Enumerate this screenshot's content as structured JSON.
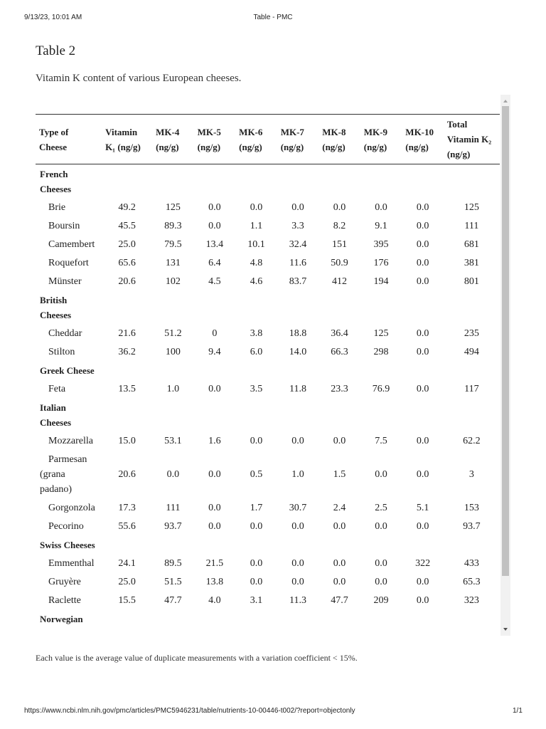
{
  "browser_header": {
    "datetime": "9/13/23, 10:01 AM",
    "page_title": "Table - PMC"
  },
  "title": "Table 2",
  "caption": "Vitamin K content of various European cheeses.",
  "table": {
    "headers": [
      "Type of Cheese",
      "Vitamin K₁ (ng/g)",
      "MK-4 (ng/g)",
      "MK-5 (ng/g)",
      "MK-6 (ng/g)",
      "MK-7 (ng/g)",
      "MK-8 (ng/g)",
      "MK-9 (ng/g)",
      "MK-10 (ng/g)",
      "Total Vitamin K₂ (ng/g)"
    ],
    "rows": [
      {
        "group": "French Cheeses"
      },
      {
        "cells": [
          "Brie",
          "49.2",
          "125",
          "0.0",
          "0.0",
          "0.0",
          "0.0",
          "0.0",
          "0.0",
          "125"
        ]
      },
      {
        "cells": [
          "Boursin",
          "45.5",
          "89.3",
          "0.0",
          "1.1",
          "3.3",
          "8.2",
          "9.1",
          "0.0",
          "111"
        ]
      },
      {
        "cells": [
          "Camembert",
          "25.0",
          "79.5",
          "13.4",
          "10.1",
          "32.4",
          "151",
          "395",
          "0.0",
          "681"
        ]
      },
      {
        "cells": [
          "Roquefort",
          "65.6",
          "131",
          "6.4",
          "4.8",
          "11.6",
          "50.9",
          "176",
          "0.0",
          "381"
        ]
      },
      {
        "cells": [
          "Münster",
          "20.6",
          "102",
          "4.5",
          "4.6",
          "83.7",
          "412",
          "194",
          "0.0",
          "801"
        ]
      },
      {
        "group": "British Cheeses"
      },
      {
        "cells": [
          "Cheddar",
          "21.6",
          "51.2",
          "0",
          "3.8",
          "18.8",
          "36.4",
          "125",
          "0.0",
          "235"
        ]
      },
      {
        "cells": [
          "Stilton",
          "36.2",
          "100",
          "9.4",
          "6.0",
          "14.0",
          "66.3",
          "298",
          "0.0",
          "494"
        ]
      },
      {
        "group": "Greek Cheese"
      },
      {
        "cells": [
          "Feta",
          "13.5",
          "1.0",
          "0.0",
          "3.5",
          "11.8",
          "23.3",
          "76.9",
          "0.0",
          "117"
        ]
      },
      {
        "group": "Italian Cheeses"
      },
      {
        "cells": [
          "Mozzarella",
          "15.0",
          "53.1",
          "1.6",
          "0.0",
          "0.0",
          "0.0",
          "7.5",
          "0.0",
          "62.2"
        ]
      },
      {
        "cells": [
          "Parmesan (grana padano)",
          "20.6",
          "0.0",
          "0.0",
          "0.5",
          "1.0",
          "1.5",
          "0.0",
          "0.0",
          "3"
        ]
      },
      {
        "cells": [
          "Gorgonzola",
          "17.3",
          "111",
          "0.0",
          "1.7",
          "30.7",
          "2.4",
          "2.5",
          "5.1",
          "153"
        ]
      },
      {
        "cells": [
          "Pecorino",
          "55.6",
          "93.7",
          "0.0",
          "0.0",
          "0.0",
          "0.0",
          "0.0",
          "0.0",
          "93.7"
        ]
      },
      {
        "group": "Swiss Cheeses"
      },
      {
        "cells": [
          "Emmenthal",
          "24.1",
          "89.5",
          "21.5",
          "0.0",
          "0.0",
          "0.0",
          "0.0",
          "322",
          "433"
        ]
      },
      {
        "cells": [
          "Gruyère",
          "25.0",
          "51.5",
          "13.8",
          "0.0",
          "0.0",
          "0.0",
          "0.0",
          "0.0",
          "65.3"
        ]
      },
      {
        "cells": [
          "Raclette",
          "15.5",
          "47.7",
          "4.0",
          "3.1",
          "11.3",
          "47.7",
          "209",
          "0.0",
          "323"
        ]
      },
      {
        "group": "Norwegian"
      }
    ]
  },
  "footnote": "Each value is the average value of duplicate measurements with a variation coefficient < 15%.",
  "browser_footer": {
    "url": "https://www.ncbi.nlm.nih.gov/pmc/articles/PMC5946231/table/nutrients-10-00446-t002/?report=objectonly",
    "page": "1/1"
  }
}
